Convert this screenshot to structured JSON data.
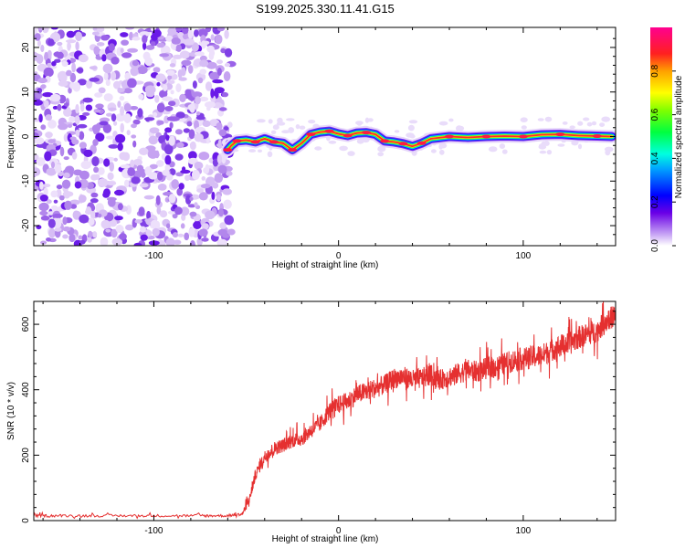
{
  "title": "S199.2025.330.11.41.G15",
  "chart_data": [
    {
      "type": "heatmap",
      "xlabel": "Height of straight line (km)",
      "ylabel": "Frequency (Hz)",
      "xlim": [
        -165,
        150
      ],
      "ylim": [
        -24.5,
        24.5
      ],
      "x_ticks": [
        -100,
        0,
        100
      ],
      "y_ticks": [
        20,
        10,
        0,
        -10,
        -20
      ],
      "colorbar": {
        "label": "Normalized spectral amplitude",
        "range": [
          0,
          1
        ],
        "ticks": [
          "0.0",
          "0.2",
          "0.4",
          "0.6",
          "0.8"
        ],
        "tick_values": [
          0.0,
          0.2,
          0.4,
          0.6,
          0.8
        ]
      },
      "noise_region_x": [
        -165,
        -60
      ],
      "ridge": {
        "x": [
          -60,
          -58,
          -55,
          -50,
          -45,
          -40,
          -35,
          -30,
          -25,
          -20,
          -15,
          -10,
          -5,
          0,
          5,
          10,
          15,
          20,
          25,
          30,
          35,
          40,
          45,
          50,
          60,
          70,
          80,
          90,
          100,
          110,
          120,
          130,
          140,
          148
        ],
        "freq": [
          -3,
          -2,
          -1,
          -0.8,
          -1.2,
          -0.5,
          -1.2,
          -1.5,
          -3,
          -1.5,
          0.5,
          1,
          1.2,
          0.6,
          0.2,
          0.8,
          0.9,
          0.5,
          -1,
          -1.2,
          -1.6,
          -2.2,
          -1.5,
          -0.5,
          0,
          -0.2,
          0,
          0.1,
          0,
          0.4,
          0.5,
          0.2,
          0.1,
          0
        ]
      }
    },
    {
      "type": "line",
      "xlabel": "Height of straight line (km)",
      "ylabel": "SNR (10 * v/v)",
      "xlim": [
        -165,
        150
      ],
      "ylim": [
        0,
        670
      ],
      "x_ticks": [
        -100,
        0,
        100
      ],
      "y_ticks": [
        0,
        200,
        400,
        600
      ],
      "series": [
        {
          "name": "SNR",
          "color": "#e53030",
          "x": [
            -165,
            -150,
            -125,
            -100,
            -75,
            -60,
            -52,
            -48,
            -45,
            -40,
            -35,
            -30,
            -25,
            -20,
            -15,
            -10,
            -5,
            0,
            5,
            10,
            15,
            20,
            25,
            30,
            35,
            40,
            45,
            50,
            55,
            60,
            65,
            70,
            75,
            80,
            85,
            90,
            95,
            100,
            105,
            110,
            115,
            120,
            125,
            130,
            135,
            140,
            145,
            150
          ],
          "y": [
            15,
            15,
            15,
            15,
            15,
            15,
            20,
            70,
            140,
            195,
            220,
            230,
            245,
            250,
            275,
            295,
            335,
            355,
            365,
            385,
            395,
            405,
            415,
            435,
            440,
            430,
            435,
            445,
            430,
            440,
            450,
            460,
            455,
            465,
            470,
            480,
            490,
            495,
            500,
            505,
            520,
            535,
            540,
            560,
            570,
            580,
            610,
            630
          ]
        }
      ]
    }
  ]
}
